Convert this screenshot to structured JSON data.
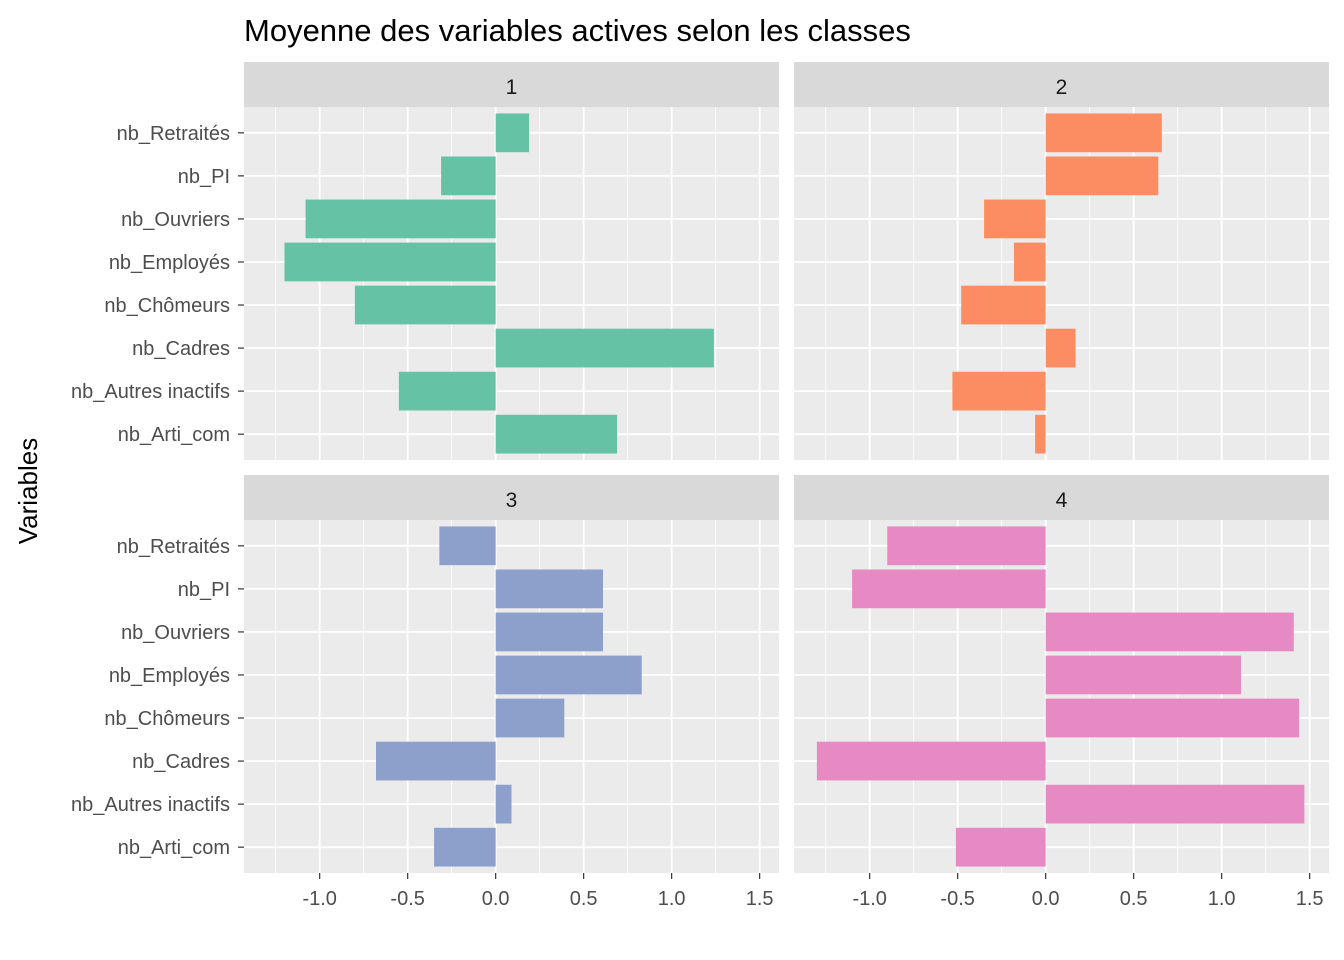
{
  "chart_data": {
    "type": "bar",
    "orientation": "horizontal",
    "title": "Moyenne des variables actives selon les classes",
    "xlabel": "",
    "ylabel": "Variables",
    "xlim": [
      -1.43,
      1.61
    ],
    "x_ticks": [
      -1.0,
      -0.5,
      0.0,
      0.5,
      1.0,
      1.5
    ],
    "x_tick_labels": [
      "-1.0",
      "-0.5",
      "0.0",
      "0.5",
      "1.0",
      "1.5"
    ],
    "categories": [
      "nb_Retraités",
      "nb_PI",
      "nb_Ouvriers",
      "nb_Employés",
      "nb_Chômeurs",
      "nb_Cadres",
      "nb_Autres inactifs",
      "nb_Arti_com"
    ],
    "grid": true,
    "facets": [
      {
        "name": "1",
        "color": "#66C2A5",
        "values": [
          0.19,
          -0.31,
          -1.08,
          -1.2,
          -0.8,
          1.24,
          -0.55,
          0.69
        ]
      },
      {
        "name": "2",
        "color": "#FC8D62",
        "values": [
          0.66,
          0.64,
          -0.35,
          -0.18,
          -0.48,
          0.17,
          -0.53,
          -0.06
        ]
      },
      {
        "name": "3",
        "color": "#8DA0CB",
        "values": [
          -0.32,
          0.61,
          0.61,
          0.83,
          0.39,
          -0.68,
          0.09,
          -0.35
        ]
      },
      {
        "name": "4",
        "color": "#E78AC3",
        "values": [
          -0.9,
          -1.1,
          1.41,
          1.11,
          1.44,
          -1.3,
          1.47,
          -0.51
        ]
      }
    ]
  }
}
